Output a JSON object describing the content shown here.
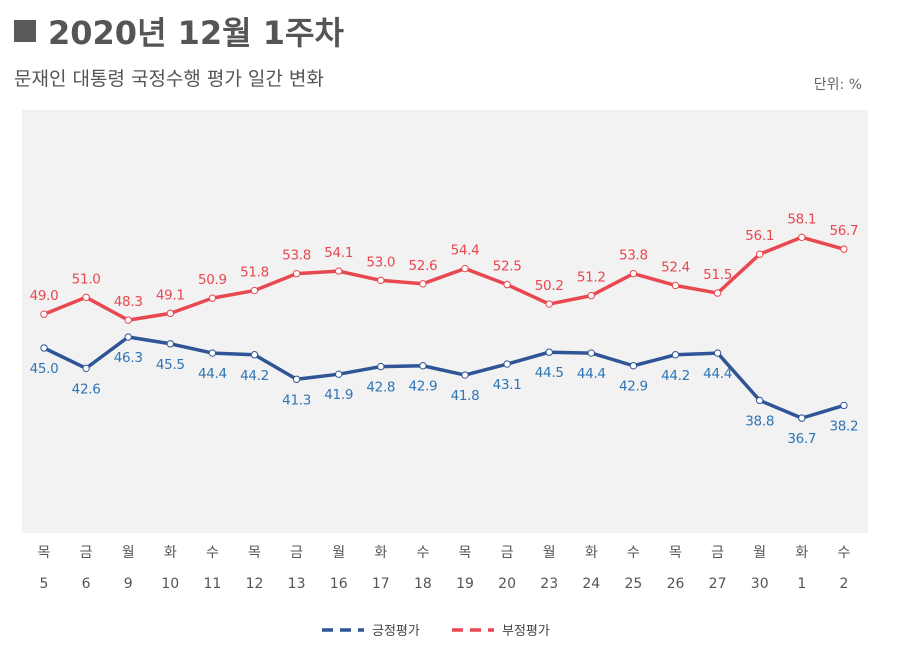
{
  "header": {
    "title": "2020년 12월 1주차",
    "subtitle": "문재인 대통령 국정수행 평가 일간 변화",
    "unit": "단위: %"
  },
  "colors": {
    "positive": "#2f5597",
    "negative": "#e8484f",
    "positive_label": "#2e75b6",
    "negative_label": "#e8484f",
    "plot_bg": "#f2f2f2"
  },
  "chart_data": {
    "type": "line",
    "title": "2020년 12월 1주차",
    "subtitle": "문재인 대통령 국정수행 평가 일간 변화",
    "unit": "단위: %",
    "days": [
      "목",
      "금",
      "월",
      "화",
      "수",
      "목",
      "금",
      "월",
      "화",
      "수",
      "목",
      "금",
      "월",
      "화",
      "수",
      "목",
      "금",
      "월",
      "화",
      "수"
    ],
    "dates": [
      "5",
      "6",
      "9",
      "10",
      "11",
      "12",
      "13",
      "16",
      "17",
      "18",
      "19",
      "20",
      "23",
      "24",
      "25",
      "26",
      "27",
      "30",
      "1",
      "2"
    ],
    "series": [
      {
        "name": "긍정평가",
        "color": "#2f5597",
        "values": [
          45.0,
          42.6,
          46.3,
          45.5,
          44.4,
          44.2,
          41.3,
          41.9,
          42.8,
          42.9,
          41.8,
          43.1,
          44.5,
          44.4,
          42.9,
          44.2,
          44.4,
          38.8,
          36.7,
          38.2
        ],
        "labels": [
          "45.0",
          "42.6",
          "46.3",
          "45.5",
          "44.4",
          "44.2",
          "41.3",
          "41.9",
          "42.8",
          "42.9",
          "41.8",
          "43.1",
          "44.5",
          "44.4",
          "42.9",
          "44.2",
          "44.4",
          "38.8",
          "36.7",
          "38.2"
        ]
      },
      {
        "name": "부정평가",
        "color": "#e8484f",
        "values": [
          49.0,
          51.0,
          48.3,
          49.1,
          50.9,
          51.8,
          53.8,
          54.1,
          53.0,
          52.6,
          54.4,
          52.5,
          50.2,
          51.2,
          53.8,
          52.4,
          51.5,
          56.1,
          58.1,
          56.7
        ],
        "labels": [
          "49.0",
          "51.0",
          "48.3",
          "49.1",
          "50.9",
          "51.8",
          "53.8",
          "54.1",
          "53.0",
          "52.6",
          "54.4",
          "52.5",
          "50.2",
          "51.2",
          "53.8",
          "52.4",
          "51.5",
          "56.1",
          "58.1",
          "56.7"
        ]
      }
    ],
    "legend": [
      "긍정평가",
      "부정평가"
    ],
    "legend_position": "bottom",
    "grid": false
  }
}
